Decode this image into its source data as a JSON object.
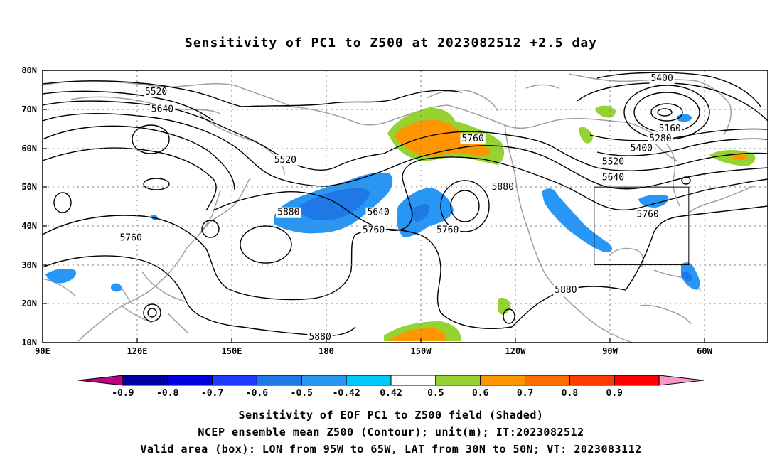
{
  "title": "Sensitivity of PC1 to Z500 at 2023082512 +2.5 day",
  "lat_ticks": [
    "80N",
    "70N",
    "60N",
    "50N",
    "40N",
    "30N",
    "20N",
    "10N"
  ],
  "lon_ticks": [
    "90E",
    "120E",
    "150E",
    "180",
    "150W",
    "120W",
    "90W",
    "60W"
  ],
  "contour_labels": [
    {
      "text": "5520",
      "lon": 126,
      "lat": 74.5
    },
    {
      "text": "5640",
      "lon": 128,
      "lat": 70
    },
    {
      "text": "5520",
      "lon": 167,
      "lat": 57
    },
    {
      "text": "5760",
      "lon": -133.5,
      "lat": 62.5
    },
    {
      "text": "5880",
      "lon": -124,
      "lat": 50
    },
    {
      "text": "5640",
      "lon": -163.5,
      "lat": 43.5
    },
    {
      "text": "5760",
      "lon": -165,
      "lat": 39
    },
    {
      "text": "5760",
      "lon": -141.5,
      "lat": 39
    },
    {
      "text": "5880",
      "lon": 168,
      "lat": 43.5
    },
    {
      "text": "5760",
      "lon": 118,
      "lat": 37
    },
    {
      "text": "5880",
      "lon": -104,
      "lat": 23.5
    },
    {
      "text": "5880",
      "lon": 178,
      "lat": 11.5
    },
    {
      "text": "5400",
      "lon": -73.5,
      "lat": 78
    },
    {
      "text": "5160",
      "lon": -71,
      "lat": 65
    },
    {
      "text": "5280",
      "lon": -74,
      "lat": 62.5
    },
    {
      "text": "5400",
      "lon": -80,
      "lat": 60
    },
    {
      "text": "5520",
      "lon": -89,
      "lat": 56.5
    },
    {
      "text": "5640",
      "lon": -89,
      "lat": 52.5
    },
    {
      "text": "5760",
      "lon": -78,
      "lat": 43
    }
  ],
  "colorbar": {
    "colors": [
      "#c00080",
      "#0000a0",
      "#0000e0",
      "#1e3cff",
      "#1e78e6",
      "#2896f5",
      "#00c8fa",
      "#ffffff",
      "#96d232",
      "#ff9600",
      "#ff6e00",
      "#ff3c00",
      "#ff0000",
      "#fa96c8"
    ],
    "labels": [
      "-0.9",
      "-0.8",
      "-0.7",
      "-0.6",
      "-0.5",
      "-0.42",
      "0.42",
      "0.5",
      "0.6",
      "0.7",
      "0.8",
      "0.9"
    ]
  },
  "valid_box": {
    "lon_min": -95,
    "lon_max": -65,
    "lat_min": 30,
    "lat_max": 50
  },
  "footer": {
    "line1": "Sensitivity of EOF PC1 to Z500 field (Shaded)",
    "line2": "NCEP ensemble mean Z500 (Contour); unit(m); IT:2023082512",
    "line3": "Valid area (box): LON from 95W to 65W, LAT from 30N to 50N; VT: 2023083112"
  }
}
